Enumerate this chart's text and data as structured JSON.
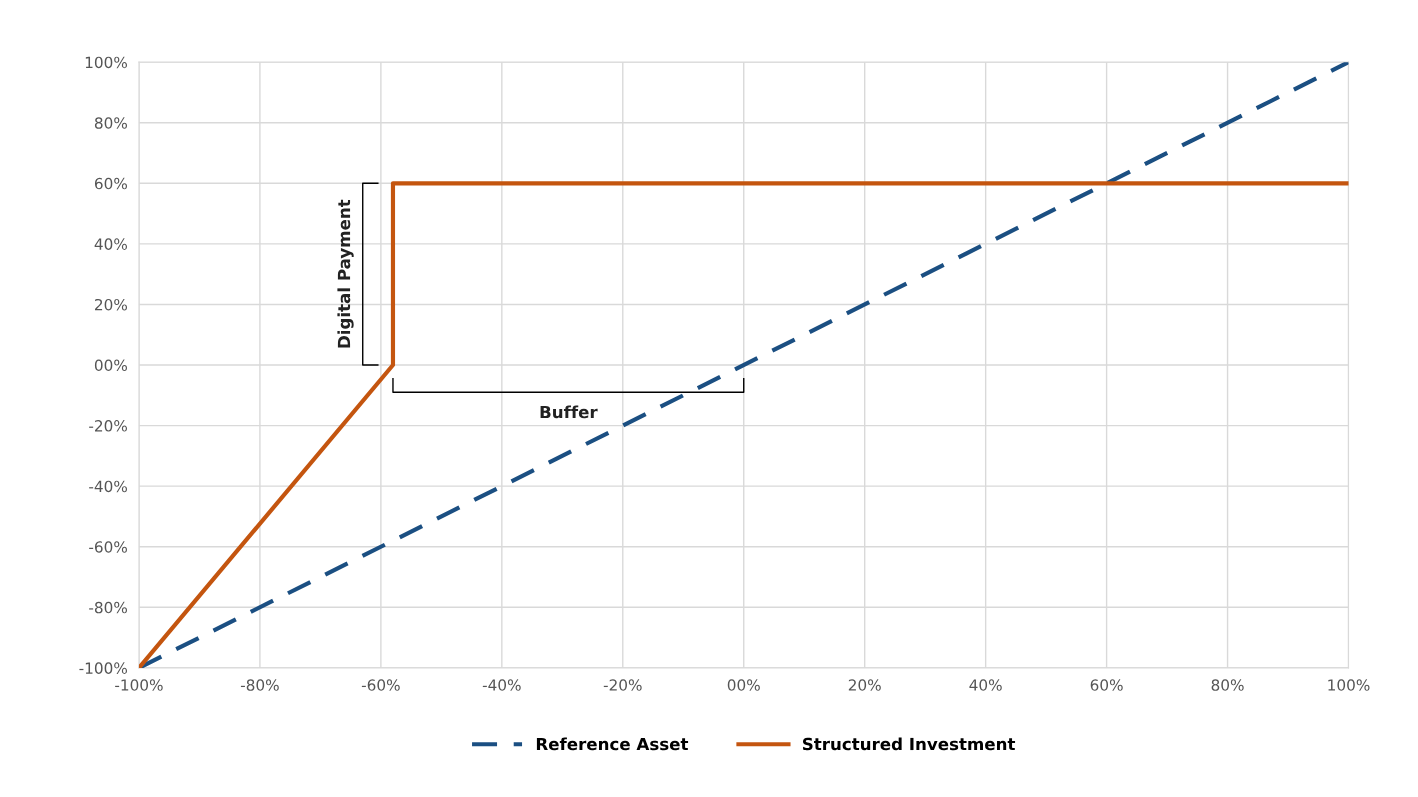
{
  "chart_data": {
    "type": "line",
    "series": [
      {
        "name": "Reference Asset",
        "color": "#1b4f82",
        "line_style": "dashed",
        "x": [
          -100,
          100
        ],
        "values": [
          -100,
          100
        ]
      },
      {
        "name": "Structured Investment",
        "color": "#c4550f",
        "line_style": "solid",
        "x": [
          -100,
          -58,
          -58,
          100
        ],
        "values": [
          -100,
          0,
          60,
          60
        ]
      }
    ],
    "xlim": [
      -100,
      100
    ],
    "xticks": [
      {
        "value": -100,
        "label": "-100%"
      },
      {
        "value": -80,
        "label": "-80%"
      },
      {
        "value": -60,
        "label": "-60%"
      },
      {
        "value": -40,
        "label": "-40%"
      },
      {
        "value": -20,
        "label": "-20%"
      },
      {
        "value": 0,
        "label": "00%"
      },
      {
        "value": 20,
        "label": "20%"
      },
      {
        "value": 40,
        "label": "40%"
      },
      {
        "value": 60,
        "label": "60%"
      },
      {
        "value": 80,
        "label": "80%"
      },
      {
        "value": 100,
        "label": "100%"
      }
    ],
    "ylim": [
      -100,
      100
    ],
    "yticks": [
      {
        "value": -100,
        "label": "-100%"
      },
      {
        "value": -80,
        "label": "-80%"
      },
      {
        "value": -60,
        "label": "-60%"
      },
      {
        "value": -40,
        "label": "-40%"
      },
      {
        "value": -20,
        "label": "-20%"
      },
      {
        "value": 0,
        "label": "00%"
      },
      {
        "value": 20,
        "label": "20%"
      },
      {
        "value": 40,
        "label": "40%"
      },
      {
        "value": 60,
        "label": "60%"
      },
      {
        "value": 80,
        "label": "80%"
      },
      {
        "value": 100,
        "label": "100%"
      }
    ],
    "annotations": [
      "Digital Payment",
      "Buffer"
    ],
    "grid": true,
    "legend": "bottom",
    "marker": "none"
  }
}
